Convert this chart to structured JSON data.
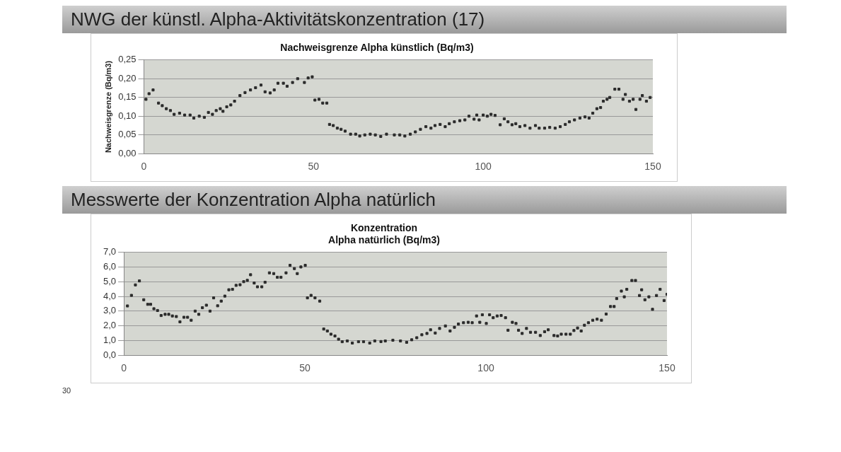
{
  "chart_data": [
    {
      "type": "scatter",
      "title": "NWG der künstl. Alpha-Aktivitätskonzentration (17)",
      "subtitle": "Nachweisgrenze Alpha künstlich (Bq/m3)",
      "ylabel": "Nachweisgrenze (Bq/m3)",
      "xlim": [
        0,
        150
      ],
      "xticks": [
        0,
        50,
        100,
        150
      ],
      "ylim": [
        0,
        0.25
      ],
      "yticks": [
        {
          "value": 0,
          "label": "0,00"
        },
        {
          "value": 0.05,
          "label": "0,05"
        },
        {
          "value": 0.1,
          "label": "0,10"
        },
        {
          "value": 0.15,
          "label": "0,15"
        },
        {
          "value": 0.2,
          "label": "0,20"
        },
        {
          "value": 0.25,
          "label": "0,25"
        }
      ],
      "grid": "y",
      "legend": false,
      "marker": "square",
      "series": [
        {
          "color": "#2b2b2b",
          "x": [
            0.6,
            1.5,
            2.7,
            4.3,
            5.4,
            6.6,
            7.8,
            8.9,
            10.5,
            12,
            13.6,
            14.7,
            16.3,
            17.8,
            19,
            20.2,
            21.3,
            22.5,
            23.3,
            24.4,
            25.6,
            26.7,
            28.3,
            29.8,
            31.4,
            32.9,
            34.5,
            35.7,
            37.2,
            38.4,
            39.5,
            41.1,
            42.2,
            43.8,
            45.3,
            47.3,
            48.4,
            49.6,
            50.4,
            51.6,
            52.7,
            53.9,
            54.7,
            55.8,
            57,
            58.1,
            59.3,
            60.9,
            62.4,
            63.6,
            65.1,
            66.7,
            68.2,
            69.8,
            71.5,
            73.8,
            75.4,
            76.9,
            78.5,
            80,
            81.5,
            83.1,
            84.6,
            85.8,
            87.3,
            88.8,
            90,
            91.5,
            93.1,
            94.6,
            95.8,
            97.3,
            98.1,
            98.8,
            100,
            101.2,
            102.3,
            103.5,
            105,
            106.2,
            107.3,
            108.5,
            109.6,
            110.8,
            112.3,
            113.8,
            115.4,
            116.5,
            118.1,
            119.6,
            121.2,
            122.7,
            124.2,
            125.4,
            126.9,
            128.5,
            130,
            131.2,
            132.3,
            133.5,
            134.6,
            135.4,
            136.5,
            137.3,
            138.8,
            140,
            141.2,
            141.9,
            143.1,
            144.2,
            145,
            146.2,
            146.9,
            148.1,
            149.2
          ],
          "values": [
            0.145,
            0.16,
            0.17,
            0.135,
            0.128,
            0.12,
            0.115,
            0.105,
            0.108,
            0.103,
            0.103,
            0.095,
            0.1,
            0.097,
            0.11,
            0.105,
            0.115,
            0.12,
            0.113,
            0.125,
            0.13,
            0.14,
            0.155,
            0.163,
            0.17,
            0.176,
            0.183,
            0.165,
            0.162,
            0.17,
            0.188,
            0.188,
            0.18,
            0.19,
            0.2,
            0.19,
            0.202,
            0.205,
            0.143,
            0.145,
            0.135,
            0.135,
            0.078,
            0.075,
            0.068,
            0.065,
            0.06,
            0.052,
            0.052,
            0.047,
            0.05,
            0.052,
            0.05,
            0.046,
            0.052,
            0.05,
            0.05,
            0.047,
            0.052,
            0.058,
            0.065,
            0.072,
            0.068,
            0.075,
            0.078,
            0.072,
            0.08,
            0.085,
            0.088,
            0.09,
            0.1,
            0.092,
            0.103,
            0.09,
            0.103,
            0.1,
            0.105,
            0.102,
            0.077,
            0.093,
            0.085,
            0.077,
            0.08,
            0.072,
            0.075,
            0.068,
            0.075,
            0.068,
            0.068,
            0.07,
            0.068,
            0.072,
            0.078,
            0.085,
            0.09,
            0.095,
            0.098,
            0.095,
            0.108,
            0.12,
            0.123,
            0.14,
            0.145,
            0.15,
            0.172,
            0.172,
            0.145,
            0.158,
            0.14,
            0.145,
            0.118,
            0.145,
            0.155,
            0.14,
            0.15
          ]
        }
      ]
    },
    {
      "type": "scatter",
      "title": "Messwerte der Konzentration Alpha natürlich",
      "subtitle": "Konzentration\nAlpha natürlich (Bq/m3)",
      "xlim": [
        0,
        150
      ],
      "xticks": [
        0,
        50,
        100,
        150
      ],
      "ylim": [
        0,
        7
      ],
      "yticks": [
        {
          "value": 0,
          "label": "0,0"
        },
        {
          "value": 1,
          "label": "1,0"
        },
        {
          "value": 2,
          "label": "2,0"
        },
        {
          "value": 3,
          "label": "3,0"
        },
        {
          "value": 4,
          "label": "4,0"
        },
        {
          "value": 5,
          "label": "5,0"
        },
        {
          "value": 6,
          "label": "6,0"
        },
        {
          "value": 7,
          "label": "7,0"
        }
      ],
      "grid": "y",
      "legend": false,
      "marker": "square",
      "annotations": [
        "30"
      ],
      "series": [
        {
          "color": "#2b2b2b",
          "x": [
            1,
            2.1,
            3.2,
            4.3,
            5.5,
            6.6,
            7.4,
            8.3,
            9.3,
            10.3,
            11.4,
            12.4,
            13.4,
            14.5,
            15.5,
            16.6,
            17.6,
            18.6,
            19.7,
            20.7,
            21.7,
            22.8,
            23.8,
            24.8,
            25.9,
            26.9,
            27.9,
            29,
            30,
            31,
            32.1,
            33.1,
            34.1,
            35,
            36,
            36.9,
            38.1,
            39,
            40.2,
            41.4,
            42.4,
            43.4,
            44.8,
            45.9,
            47.1,
            47.9,
            48.9,
            50.1,
            50.7,
            51.7,
            52.8,
            54.1,
            55.2,
            56.2,
            57.2,
            58.3,
            59.3,
            60.3,
            61.7,
            63.1,
            64.8,
            66.2,
            67.9,
            69.3,
            71,
            72.2,
            74.3,
            76.4,
            78.1,
            79.5,
            80.9,
            82.3,
            83.7,
            84.7,
            86,
            87.2,
            88.8,
            90.1,
            91.3,
            92.4,
            93.8,
            95.1,
            96.2,
            97.4,
            98.3,
            99,
            100.1,
            101,
            102,
            103.1,
            104.2,
            105.4,
            106.1,
            107.3,
            108.3,
            109,
            110,
            111.2,
            112.3,
            113.7,
            115,
            116.2,
            117.2,
            118.8,
            119.8,
            120.8,
            122.1,
            123.3,
            124.3,
            125.3,
            126.3,
            127.2,
            128.3,
            129.5,
            130.7,
            131.9,
            133.2,
            134.4,
            135.4,
            136.1,
            137.4,
            138.2,
            138.9,
            140.3,
            141.3,
            142.4,
            143,
            143.9,
            145,
            146,
            147.1,
            148.1,
            149.2,
            150
          ],
          "values": [
            3.35,
            4.07,
            4.78,
            5.05,
            3.77,
            3.46,
            3.46,
            3.16,
            3.04,
            2.7,
            2.78,
            2.78,
            2.67,
            2.63,
            2.27,
            2.58,
            2.58,
            2.38,
            3,
            2.78,
            3.23,
            3.4,
            3,
            3.9,
            3.36,
            3.68,
            4.02,
            4.45,
            4.48,
            4.75,
            4.79,
            5,
            5.09,
            5.47,
            4.91,
            4.65,
            4.65,
            4.96,
            5.6,
            5.55,
            5.3,
            5.3,
            5.6,
            6.11,
            5.89,
            5.55,
            6,
            6.11,
            3.9,
            4.07,
            3.9,
            3.68,
            1.78,
            1.65,
            1.43,
            1.31,
            1.09,
            0.92,
            0.97,
            0.83,
            0.92,
            0.92,
            0.83,
            0.97,
            0.93,
            0.97,
            1.02,
            0.97,
            0.88,
            1.05,
            1.19,
            1.39,
            1.48,
            1.73,
            1.51,
            1.82,
            1.99,
            1.65,
            1.9,
            2.12,
            2.21,
            2.24,
            2.21,
            2.67,
            2.24,
            2.75,
            2.16,
            2.75,
            2.55,
            2.67,
            2.7,
            2.55,
            1.7,
            2.24,
            2.16,
            1.7,
            1.48,
            1.82,
            1.56,
            1.56,
            1.34,
            1.6,
            1.73,
            1.34,
            1.31,
            1.43,
            1.43,
            1.43,
            1.68,
            1.85,
            1.65,
            2.04,
            2.21,
            2.38,
            2.45,
            2.38,
            2.8,
            3.31,
            3.31,
            3.85,
            4.36,
            3.97,
            4.48,
            5.08,
            5.08,
            4.06,
            4.45,
            3.77,
            3.97,
            3.12,
            4.06,
            4.48,
            3.72,
            4.14
          ]
        }
      ]
    }
  ]
}
